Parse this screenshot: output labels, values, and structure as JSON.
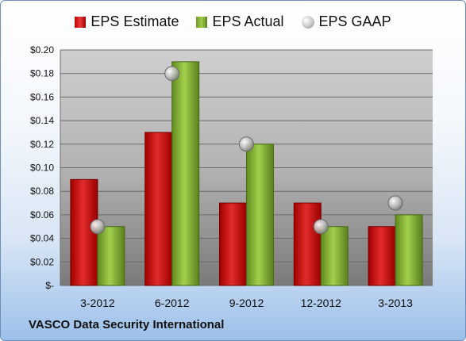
{
  "company": "VASCO Data Security International",
  "legend": {
    "estimate": "EPS Estimate",
    "actual": "EPS Actual",
    "gaap": "EPS GAAP"
  },
  "colors": {
    "estimate": "#c00000",
    "actual": "#8db83a",
    "gaap": "#b8b8b8"
  },
  "chart_data": {
    "type": "bar",
    "categories": [
      "3-2012",
      "6-2012",
      "9-2012",
      "12-2012",
      "3-2013"
    ],
    "series": [
      {
        "name": "EPS Estimate",
        "values": [
          0.09,
          0.13,
          0.07,
          0.07,
          0.05
        ]
      },
      {
        "name": "EPS Actual",
        "values": [
          0.05,
          0.19,
          0.12,
          0.05,
          0.06
        ]
      },
      {
        "name": "EPS GAAP",
        "marker": "circle",
        "values": [
          0.05,
          0.18,
          0.12,
          0.05,
          0.07
        ]
      }
    ],
    "yticks": [
      "$-",
      "$0.02",
      "$0.04",
      "$0.06",
      "$0.08",
      "$0.10",
      "$0.12",
      "$0.14",
      "$0.16",
      "$0.18",
      "$0.20"
    ],
    "ylim": [
      0,
      0.2
    ],
    "grid": true,
    "legend_position": "top"
  }
}
